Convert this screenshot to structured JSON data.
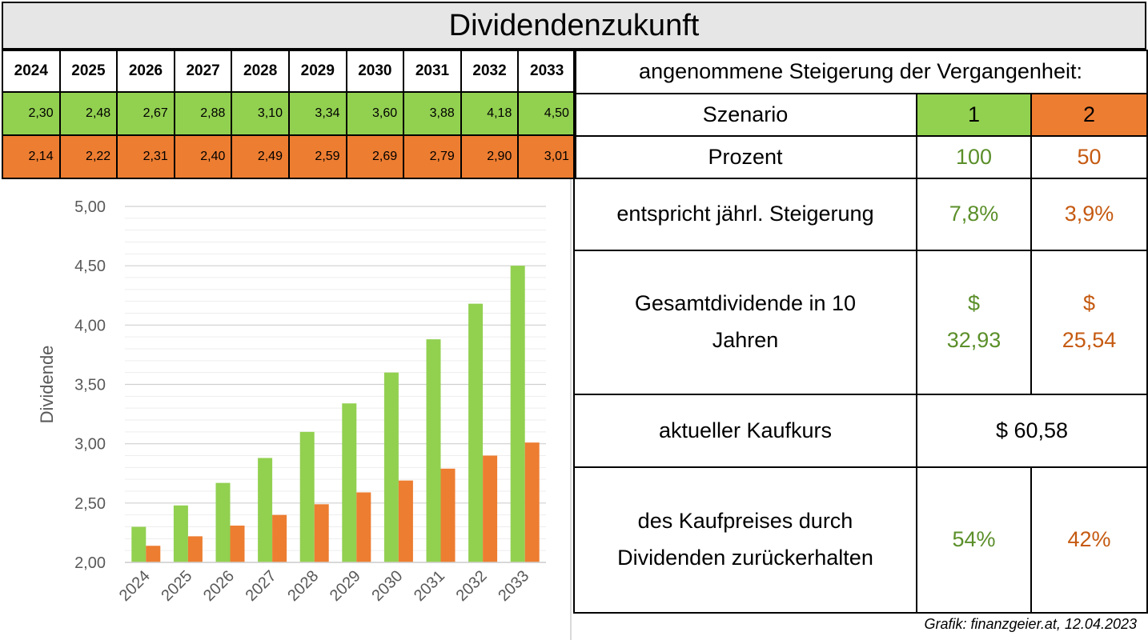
{
  "title": "Dividendenzukunft",
  "colors": {
    "scenario1": "#92d050",
    "scenario2": "#ed7d31",
    "text1": "#5b8f2a",
    "text2": "#c55a11"
  },
  "table": {
    "years": [
      "2024",
      "2025",
      "2026",
      "2027",
      "2028",
      "2029",
      "2030",
      "2031",
      "2032",
      "2033"
    ],
    "scenario1": [
      "2,30",
      "2,48",
      "2,67",
      "2,88",
      "3,10",
      "3,34",
      "3,60",
      "3,88",
      "4,18",
      "4,50"
    ],
    "scenario2": [
      "2,14",
      "2,22",
      "2,31",
      "2,40",
      "2,49",
      "2,59",
      "2,69",
      "2,79",
      "2,90",
      "3,01"
    ]
  },
  "assumptions": {
    "header": "angenommene Steigerung der Vergangenheit:",
    "scenario_label": "Szenario",
    "scenario_1": "1",
    "scenario_2": "2",
    "percent_label": "Prozent",
    "percent_1": "100",
    "percent_2": "50",
    "growth_label": "entspricht jährl. Steigerung",
    "growth_1": "7,8%",
    "growth_2": "3,9%",
    "total_label_line1": "Gesamtdividende in 10",
    "total_label_line2": "Jahren",
    "total_1_currency": "$",
    "total_1_value": "32,93",
    "total_2_currency": "$",
    "total_2_value": "25,54",
    "price_label": "aktueller Kaufkurs",
    "price_value": "$ 60,58",
    "return_label_line1": "des Kaufpreises durch",
    "return_label_line2": "Dividenden zurückerhalten",
    "return_1": "54%",
    "return_2": "42%"
  },
  "credit": "Grafik: finanzgeier.at, 12.04.2023",
  "chart_data": {
    "type": "bar",
    "categories": [
      "2024",
      "2025",
      "2026",
      "2027",
      "2028",
      "2029",
      "2030",
      "2031",
      "2032",
      "2033"
    ],
    "series": [
      {
        "values": [
          2.3,
          2.48,
          2.67,
          2.88,
          3.1,
          3.34,
          3.6,
          3.88,
          4.18,
          4.5
        ],
        "color": "#92d050"
      },
      {
        "values": [
          2.14,
          2.22,
          2.31,
          2.4,
          2.49,
          2.59,
          2.69,
          2.79,
          2.9,
          3.01
        ],
        "color": "#ed7d31"
      }
    ],
    "ylabel": "Dividende",
    "ylim": [
      2.0,
      5.0
    ],
    "yticks": [
      "2,00",
      "2,50",
      "3,00",
      "3,50",
      "4,00",
      "4,50",
      "5,00"
    ],
    "grid": true
  }
}
